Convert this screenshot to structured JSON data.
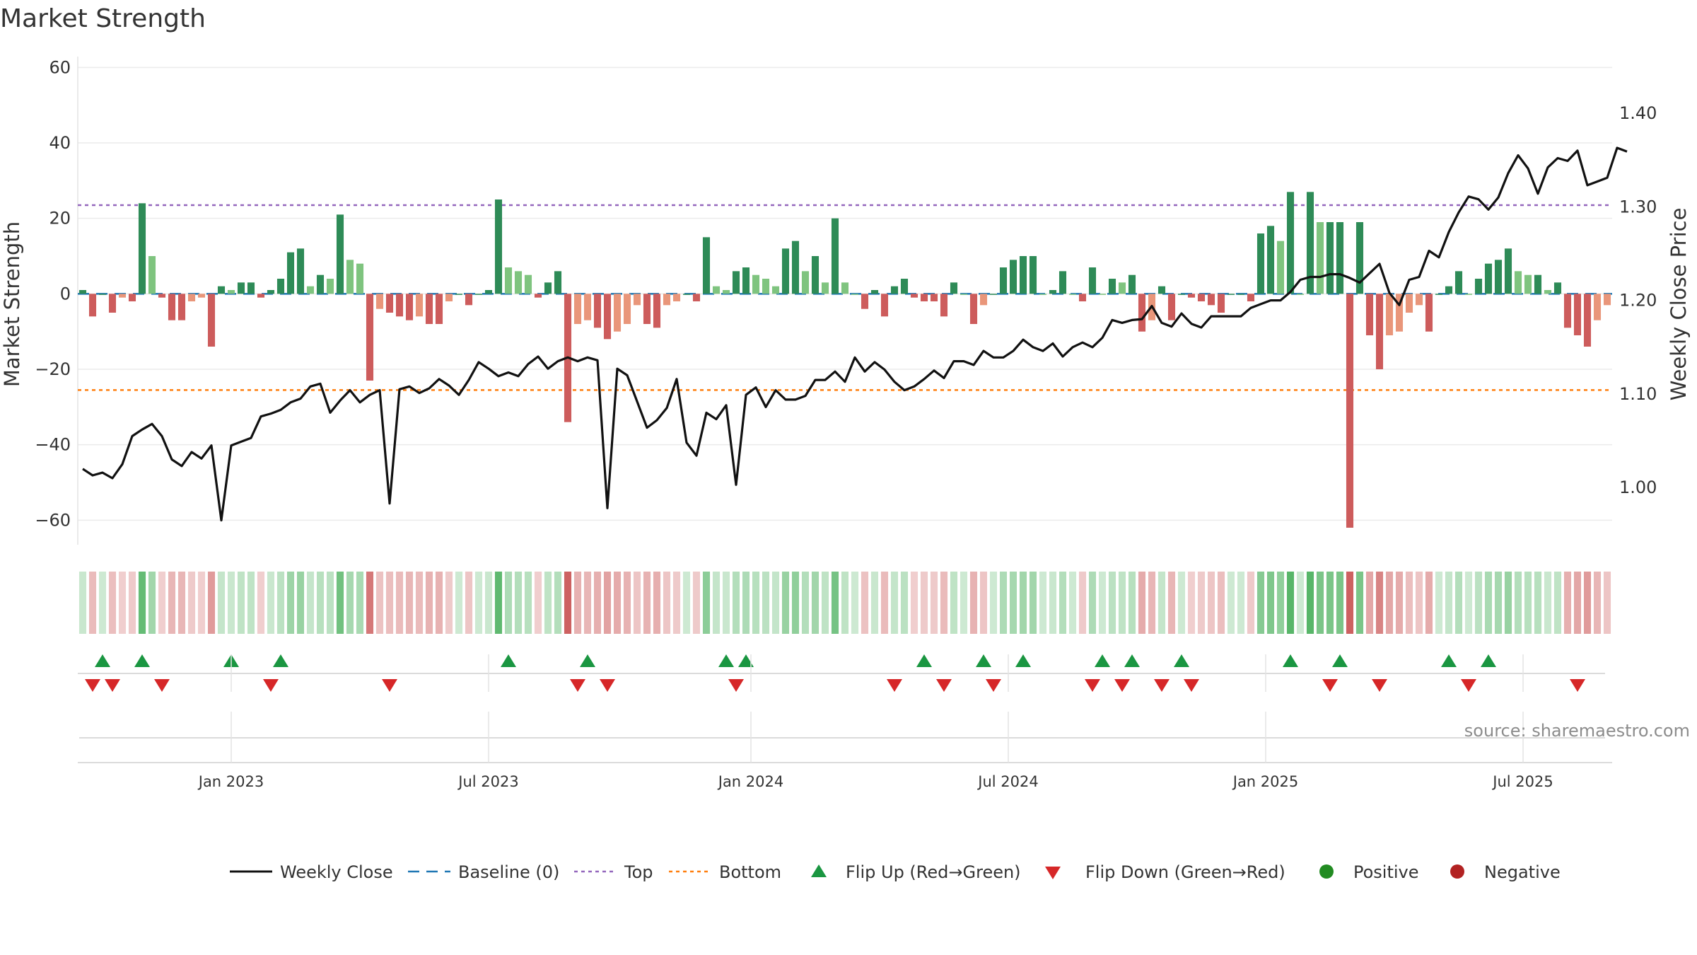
{
  "colors": {
    "pos_strong": "#2e8b57",
    "pos_weak": "#7fc47f",
    "neg_strong": "#cd5c5c",
    "neg_weak": "#e9967a",
    "close_line": "#111111",
    "baseline": "#1f77b4",
    "top_line": "#9467bd",
    "bottom_line": "#ff7f0e",
    "flip_up": "#1a9641",
    "flip_down": "#d62728",
    "positive_dot": "#228b22",
    "negative_dot": "#b22222"
  },
  "chart_data": {
    "type": "bar",
    "title": "Market Strength",
    "ylabel": "Market Strength",
    "y2label": "Weekly Close Price",
    "ylim": [
      -65,
      64
    ],
    "y2lim": [
      0.945,
      1.465
    ],
    "yticks": [
      60,
      40,
      20,
      0,
      -20,
      -40,
      -60
    ],
    "y2ticks": [
      "1.00",
      "1.10",
      "1.20",
      "1.30",
      "1.40"
    ],
    "x_tick_labels": [
      "Jan 2023",
      "Jul 2023",
      "Jan 2024",
      "Jul 2024",
      "Jan 2025",
      "Jul 2025"
    ],
    "x_tick_weeks": [
      15,
      41,
      67.5,
      93.5,
      119.5,
      145.5
    ],
    "top": 23.5,
    "bottom": -25.5,
    "grid": true,
    "legend_position": "bottom",
    "strength": [
      1,
      -6,
      0,
      -5,
      -1,
      -2,
      24,
      10,
      -1,
      -7,
      -7,
      -2,
      -1,
      -14,
      2,
      1,
      3,
      3,
      -1,
      1,
      4,
      11,
      12,
      2,
      5,
      4,
      21,
      9,
      8,
      -23,
      -4,
      -5,
      -6,
      -7,
      -6,
      -8,
      -8,
      -2,
      0,
      -3,
      0,
      1,
      25,
      7,
      6,
      5,
      -1,
      3,
      6,
      -34,
      -8,
      -7,
      -9,
      -12,
      -10,
      -8,
      -3,
      -8,
      -9,
      -3,
      -2,
      0,
      -2,
      15,
      2,
      1,
      6,
      7,
      5,
      4,
      2,
      12,
      14,
      6,
      10,
      3,
      20,
      3,
      0,
      -4,
      1,
      -6,
      2,
      4,
      -1,
      -2,
      -2,
      -6,
      3,
      0,
      -8,
      -3,
      0,
      7,
      9,
      10,
      10,
      0,
      1,
      6,
      0,
      -2,
      7,
      0,
      4,
      3,
      5,
      -10,
      -7,
      2,
      -7,
      0,
      -1,
      -2,
      -3,
      -5,
      0,
      0,
      -2,
      16,
      18,
      14,
      27,
      0,
      27,
      19,
      19,
      19,
      -62,
      19,
      -11,
      -20,
      -11,
      -10,
      -5,
      -3,
      -10,
      0,
      2,
      6,
      0,
      4,
      8,
      9,
      12,
      6,
      5,
      5,
      1,
      3,
      -9,
      -11,
      -14,
      -7,
      -3
    ],
    "weekly_close": [
      1.02,
      1.013,
      1.016,
      1.01,
      1.025,
      1.055,
      1.062,
      1.068,
      1.055,
      1.03,
      1.023,
      1.038,
      1.031,
      1.045,
      0.965,
      1.045,
      1.049,
      1.053,
      1.076,
      1.079,
      1.083,
      1.091,
      1.095,
      1.108,
      1.111,
      1.08,
      1.093,
      1.104,
      1.091,
      1.099,
      1.104,
      0.983,
      1.105,
      1.108,
      1.101,
      1.106,
      1.116,
      1.109,
      1.099,
      1.115,
      1.134,
      1.127,
      1.119,
      1.123,
      1.119,
      1.132,
      1.14,
      1.127,
      1.135,
      1.139,
      1.135,
      1.139,
      1.136,
      0.978,
      1.127,
      1.12,
      1.092,
      1.064,
      1.072,
      1.085,
      1.116,
      1.048,
      1.034,
      1.08,
      1.073,
      1.088,
      1.003,
      1.099,
      1.107,
      1.086,
      1.104,
      1.094,
      1.094,
      1.098,
      1.115,
      1.115,
      1.124,
      1.113,
      1.139,
      1.124,
      1.134,
      1.126,
      1.113,
      1.104,
      1.108,
      1.116,
      1.125,
      1.117,
      1.135,
      1.135,
      1.131,
      1.146,
      1.139,
      1.139,
      1.146,
      1.158,
      1.15,
      1.146,
      1.154,
      1.14,
      1.15,
      1.155,
      1.15,
      1.16,
      1.179,
      1.176,
      1.179,
      1.18,
      1.194,
      1.176,
      1.172,
      1.186,
      1.175,
      1.171,
      1.183,
      1.183,
      1.183,
      1.183,
      1.192,
      1.196,
      1.2,
      1.2,
      1.209,
      1.222,
      1.225,
      1.225,
      1.228,
      1.228,
      1.224,
      1.219,
      1.229,
      1.239,
      1.208,
      1.195,
      1.222,
      1.225,
      1.253,
      1.246,
      1.273,
      1.294,
      1.311,
      1.308,
      1.297,
      1.31,
      1.336,
      1.355,
      1.341,
      1.314,
      1.342,
      1.352,
      1.349,
      1.36,
      1.323,
      1.327,
      1.331,
      1.363,
      1.359
    ],
    "flip_up_weeks": [
      2,
      6,
      15,
      20,
      43,
      51,
      65,
      67,
      85,
      91,
      95,
      103,
      106,
      111,
      122,
      127,
      138,
      142
    ],
    "flip_down_weeks": [
      1,
      3,
      8,
      19,
      31,
      50,
      53,
      66,
      82,
      87,
      92,
      102,
      105,
      109,
      112,
      126,
      131,
      140,
      151
    ]
  },
  "legend": {
    "weekly_close": "Weekly Close",
    "baseline": "Baseline (0)",
    "top": "Top",
    "bottom": "Bottom",
    "flip_up": "Flip Up (Red→Green)",
    "flip_down": "Flip Down (Green→Red)",
    "positive": "Positive",
    "negative": "Negative"
  },
  "source": "source: sharemaestro.com"
}
